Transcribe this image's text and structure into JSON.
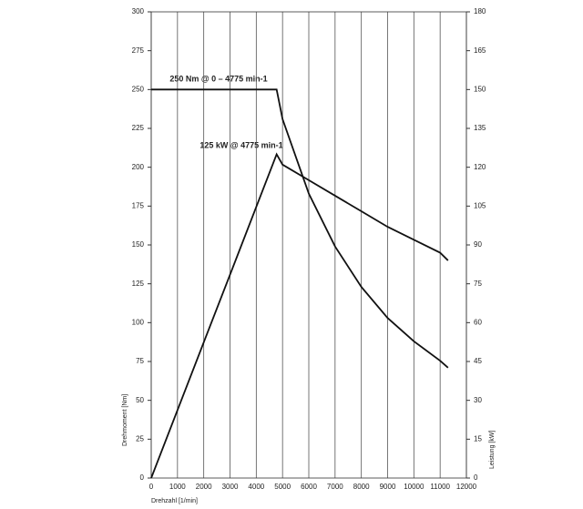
{
  "chart_data": {
    "type": "line",
    "xlabel": "Drehzahl [1/min]",
    "ylabel": "Drehmoment [Nm]",
    "y2label": "Leistung [kW]",
    "annotations": [
      "250 Nm @ 0 – 4775 min-1",
      "125 kW @ 4775 min-1"
    ],
    "series": [
      {
        "color": "#111111",
        "x": [
          0,
          4775,
          5000,
          6000,
          7000,
          8000,
          9000,
          10000,
          11000,
          11300
        ],
        "values": [
          250,
          250,
          231,
          183,
          149,
          123,
          103,
          88,
          75.5,
          71
        ]
      },
      {
        "color": "#111111",
        "axis": "y2",
        "x": [
          0,
          1000,
          2000,
          3000,
          4000,
          4775,
          5000,
          6000,
          7000,
          8000,
          9000,
          10000,
          11000,
          11300
        ],
        "values": [
          0,
          26.2,
          52.4,
          78.5,
          104.7,
          125,
          121,
          115,
          109,
          103,
          97,
          92,
          87,
          84
        ]
      }
    ],
    "xlim": [
      0,
      12000
    ],
    "xticks": [
      0,
      1000,
      2000,
      3000,
      4000,
      5000,
      6000,
      7000,
      8000,
      9000,
      10000,
      11000,
      12000
    ],
    "ylim": [
      0,
      300
    ],
    "yticks": [
      0,
      25,
      50,
      75,
      100,
      125,
      150,
      175,
      200,
      225,
      250,
      275,
      300
    ],
    "y2lim": [
      0,
      180
    ],
    "y2ticks": [
      0,
      15,
      30,
      45,
      60,
      75,
      90,
      105,
      120,
      135,
      150,
      165,
      180
    ],
    "grid": "x"
  }
}
